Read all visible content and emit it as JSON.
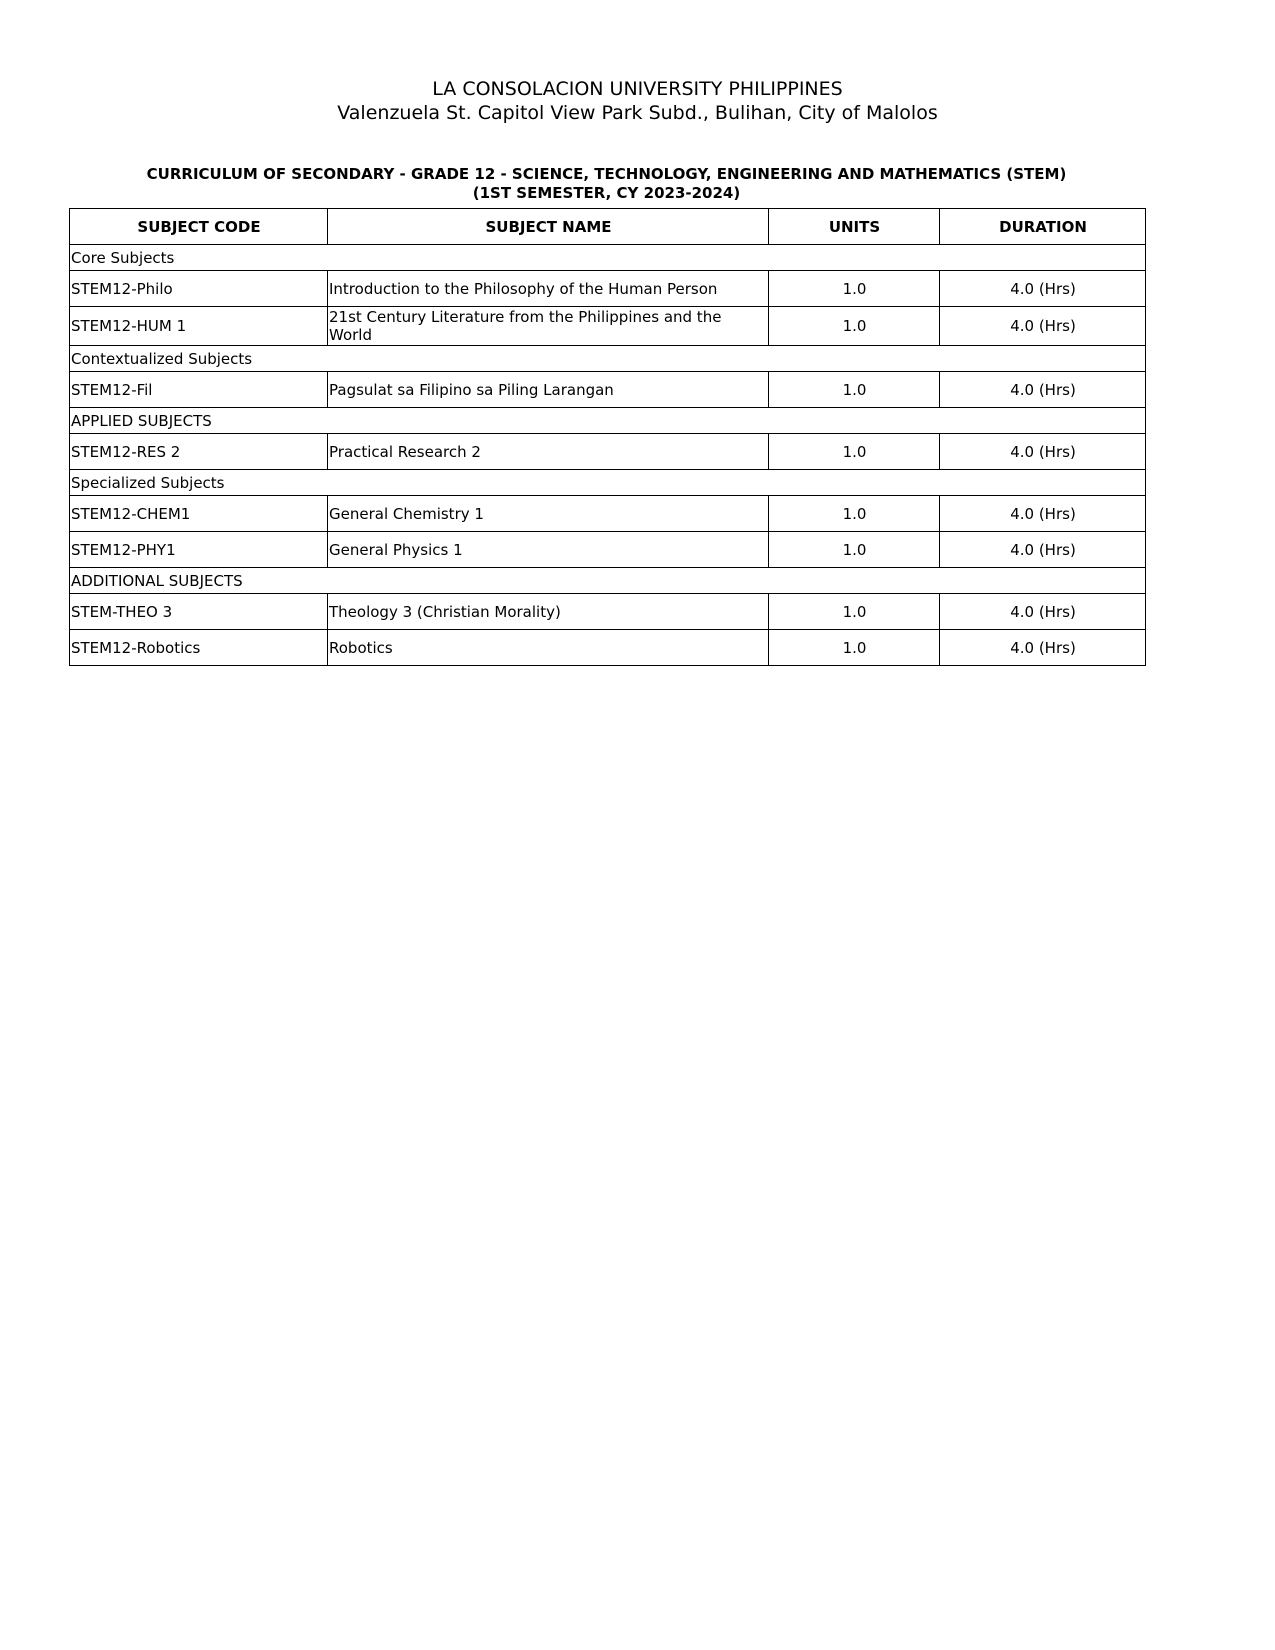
{
  "header": {
    "institution": "LA CONSOLACION UNIVERSITY PHILIPPINES",
    "address": "Valenzuela St. Capitol View Park Subd., Bulihan, City of Malolos"
  },
  "title": {
    "line1": "CURRICULUM OF SECONDARY - GRADE 12 - SCIENCE, TECHNOLOGY, ENGINEERING AND MATHEMATICS (STEM)",
    "line2": "(1ST SEMESTER, CY 2023-2024)"
  },
  "table": {
    "columns": [
      "SUBJECT CODE",
      "SUBJECT NAME",
      "UNITS",
      "DURATION"
    ],
    "sections": [
      {
        "label": "Core Subjects",
        "rows": [
          {
            "code": "STEM12-Philo",
            "name": "Introduction to the Philosophy of the Human Person",
            "units": "1.0",
            "duration": "4.0 (Hrs)"
          },
          {
            "code": "STEM12-HUM 1",
            "name": "21st Century Literature from the Philippines and the World",
            "units": "1.0",
            "duration": "4.0 (Hrs)"
          }
        ]
      },
      {
        "label": "Contextualized Subjects",
        "rows": [
          {
            "code": "STEM12-Fil",
            "name": "Pagsulat sa Filipino sa Piling Larangan",
            "units": "1.0",
            "duration": "4.0 (Hrs)"
          }
        ]
      },
      {
        "label": "APPLIED SUBJECTS",
        "rows": [
          {
            "code": "STEM12-RES 2",
            "name": "Practical Research 2",
            "units": "1.0",
            "duration": "4.0 (Hrs)"
          }
        ]
      },
      {
        "label": "Specialized Subjects",
        "rows": [
          {
            "code": "STEM12-CHEM1",
            "name": "General Chemistry 1",
            "units": "1.0",
            "duration": "4.0 (Hrs)"
          },
          {
            "code": "STEM12-PHY1",
            "name": "General Physics 1",
            "units": "1.0",
            "duration": "4.0 (Hrs)"
          }
        ]
      },
      {
        "label": "ADDITIONAL SUBJECTS",
        "rows": [
          {
            "code": "STEM-THEO 3",
            "name": "Theology 3 (Christian Morality)",
            "units": "1.0",
            "duration": "4.0 (Hrs)"
          },
          {
            "code": "STEM12-Robotics",
            "name": "Robotics",
            "units": "1.0",
            "duration": "4.0 (Hrs)"
          }
        ]
      }
    ]
  }
}
